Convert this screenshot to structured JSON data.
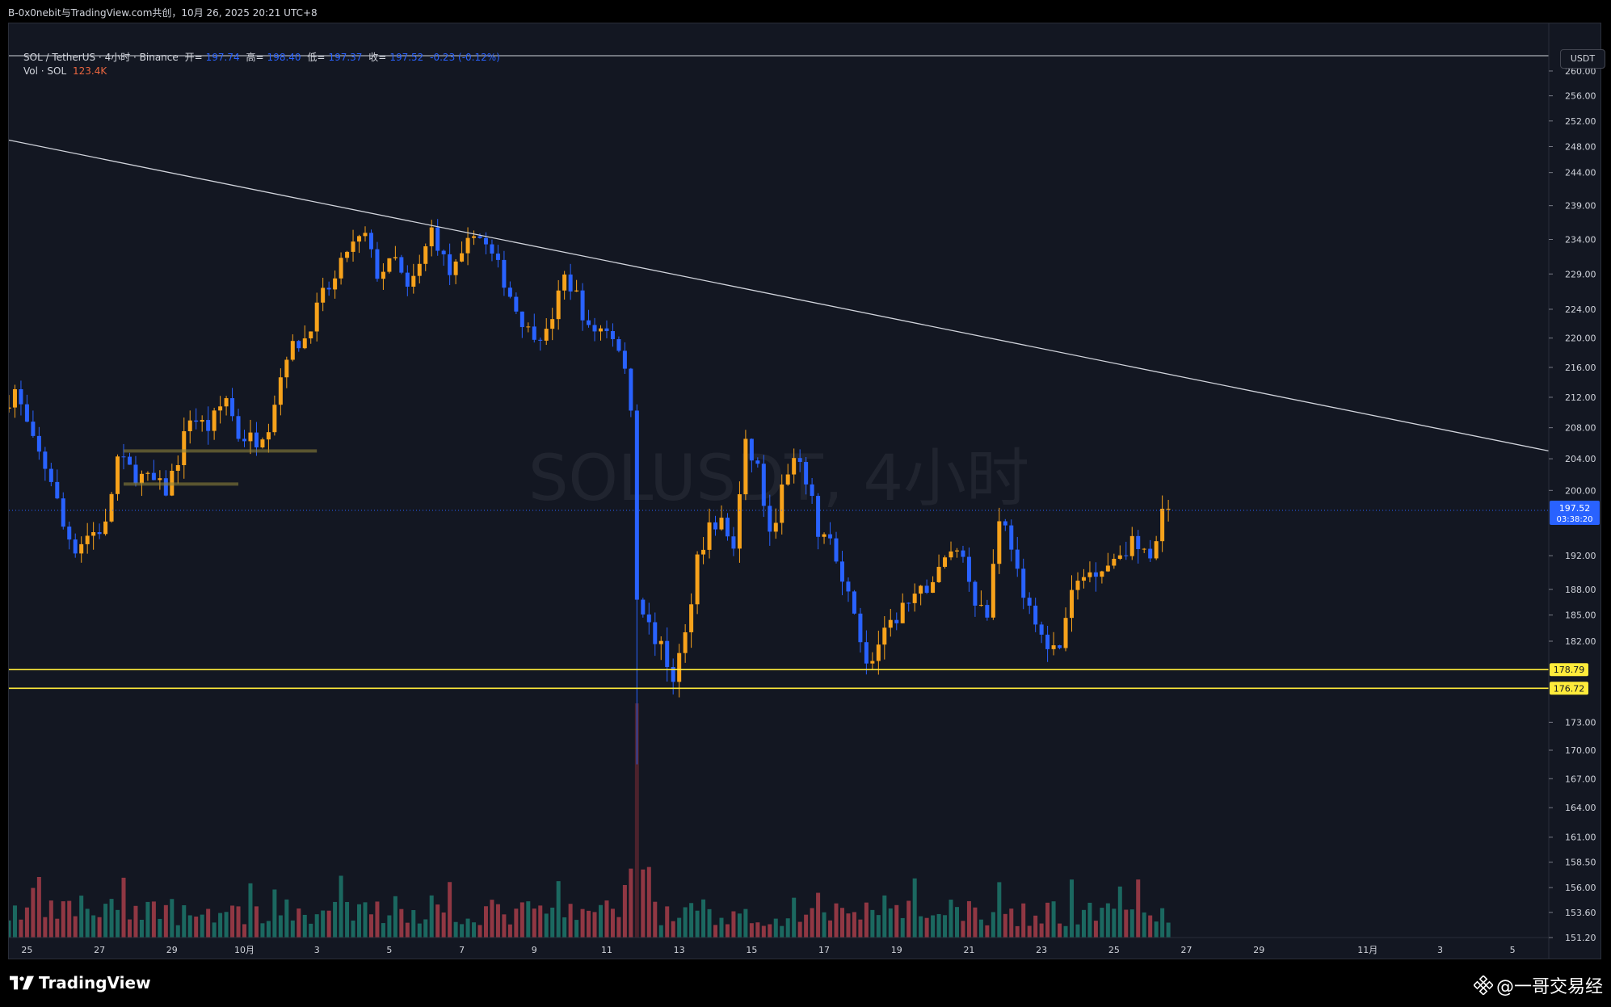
{
  "share_text": "B-0x0nebit与TradingView.com共创，10月 26, 2025 20:21 UTC+8",
  "legend": {
    "symbol": "SOL / TetherUS · 4小时 · Binance",
    "open_label": "开=",
    "open": "197.74",
    "high_label": "高=",
    "high": "198.40",
    "low_label": "低=",
    "low": "197.37",
    "close_label": "收=",
    "close": "197.52",
    "change": "-0.23 (-0.12%)",
    "vol_label": "Vol · SOL",
    "vol_value": "123.4K"
  },
  "currency_button": "USDT",
  "watermark_text": "SOLUSDT, 4小时",
  "brand": "TradingView",
  "credit": "@一哥交易经",
  "price_tag": {
    "value": "197.52",
    "countdown": "03:38:20"
  },
  "level_tags": [
    "178.79",
    "176.72"
  ],
  "colors": {
    "background": "#131722",
    "up": "#f7a21b",
    "down": "#2962ff",
    "vol_up": "#22ab94",
    "vol_down": "#f7525f",
    "level": "#ffeb3b",
    "trendline": "#d1d4dc",
    "box": "#8a7f3a",
    "last_price": "#2962ff"
  },
  "icons": [
    "tradingview-logo-icon",
    "binance-logo-icon"
  ],
  "chart_data": {
    "type": "candlestick",
    "title": "SOL / TetherUS · 4小时 · Binance",
    "y_scale": "log",
    "y_ticks": [
      "260.00",
      "256.00",
      "252.00",
      "248.00",
      "244.00",
      "239.00",
      "234.00",
      "229.00",
      "224.00",
      "220.00",
      "216.00",
      "212.00",
      "208.00",
      "204.00",
      "200.00",
      "192.00",
      "188.00",
      "185.00",
      "182.00",
      "173.00",
      "170.00",
      "167.00",
      "164.00",
      "161.00",
      "158.50",
      "156.00",
      "153.60",
      "151.20"
    ],
    "ylim": [
      151.2,
      262.5
    ],
    "x_ticks": [
      "25",
      "27",
      "29",
      "10月",
      "3",
      "5",
      "7",
      "9",
      "11",
      "13",
      "15",
      "17",
      "19",
      "21",
      "23",
      "25",
      "27",
      "29",
      "11月",
      "3",
      "5"
    ],
    "x_tick_dates": [
      "2025-09-25",
      "2025-09-27",
      "2025-09-29",
      "2025-10-01",
      "2025-10-03",
      "2025-10-05",
      "2025-10-07",
      "2025-10-09",
      "2025-10-11",
      "2025-10-13",
      "2025-10-15",
      "2025-10-17",
      "2025-10-19",
      "2025-10-21",
      "2025-10-23",
      "2025-10-25",
      "2025-10-27",
      "2025-10-29",
      "2025-11-01",
      "2025-11-03",
      "2025-11-05"
    ],
    "xlim": [
      "2025-09-24T12:00",
      "2025-11-06T00:00"
    ],
    "price_path": [
      [
        "2025-09-24T12:00",
        210.5
      ],
      [
        "2025-09-24T20:00",
        213.0
      ],
      [
        "2025-09-25T08:00",
        206.0
      ],
      [
        "2025-09-25T20:00",
        201.5
      ],
      [
        "2025-09-26T04:00",
        195.5
      ],
      [
        "2025-09-26T12:00",
        193.0
      ],
      [
        "2025-09-26T20:00",
        194.5
      ],
      [
        "2025-09-27T08:00",
        195.5
      ],
      [
        "2025-09-27T16:00",
        204.0
      ],
      [
        "2025-09-28T04:00",
        202.0
      ],
      [
        "2025-09-28T16:00",
        201.0
      ],
      [
        "2025-09-29T00:00",
        200.0
      ],
      [
        "2025-09-29T08:00",
        204.0
      ],
      [
        "2025-09-29T16:00",
        209.5
      ],
      [
        "2025-09-30T04:00",
        208.0
      ],
      [
        "2025-09-30T16:00",
        212.0
      ],
      [
        "2025-10-01T00:00",
        207.0
      ],
      [
        "2025-10-01T12:00",
        206.5
      ],
      [
        "2025-10-01T20:00",
        208.5
      ],
      [
        "2025-10-02T08:00",
        218.0
      ],
      [
        "2025-10-02T20:00",
        220.0
      ],
      [
        "2025-10-03T08:00",
        226.0
      ],
      [
        "2025-10-03T16:00",
        228.0
      ],
      [
        "2025-10-04T00:00",
        232.5
      ],
      [
        "2025-10-04T12:00",
        234.5
      ],
      [
        "2025-10-04T20:00",
        229.0
      ],
      [
        "2025-10-05T08:00",
        231.0
      ],
      [
        "2025-10-05T16:00",
        226.5
      ],
      [
        "2025-10-06T00:00",
        230.0
      ],
      [
        "2025-10-06T08:00",
        235.5
      ],
      [
        "2025-10-06T20:00",
        229.0
      ],
      [
        "2025-10-07T04:00",
        231.0
      ],
      [
        "2025-10-07T12:00",
        235.5
      ],
      [
        "2025-10-07T20:00",
        233.0
      ],
      [
        "2025-10-08T04:00",
        230.0
      ],
      [
        "2025-10-08T16:00",
        224.0
      ],
      [
        "2025-10-09T00:00",
        221.0
      ],
      [
        "2025-10-09T12:00",
        220.5
      ],
      [
        "2025-10-10T00:00",
        228.5
      ],
      [
        "2025-10-10T08:00",
        226.0
      ],
      [
        "2025-10-10T16:00",
        221.0
      ],
      [
        "2025-10-11T04:00",
        221.5
      ],
      [
        "2025-10-11T12:00",
        219.0
      ],
      [
        "2025-10-11T20:00",
        211.0
      ],
      [
        "2025-10-12T00:00",
        187.0
      ],
      [
        "2025-10-12T08:00",
        184.0
      ],
      [
        "2025-10-12T16:00",
        181.0
      ],
      [
        "2025-10-13T00:00",
        178.0
      ],
      [
        "2025-10-13T08:00",
        182.5
      ],
      [
        "2025-10-13T16:00",
        192.0
      ],
      [
        "2025-10-14T00:00",
        195.5
      ],
      [
        "2025-10-14T08:00",
        196.0
      ],
      [
        "2025-10-14T16:00",
        193.0
      ],
      [
        "2025-10-15T00:00",
        205.5
      ],
      [
        "2025-10-15T08:00",
        203.0
      ],
      [
        "2025-10-15T16:00",
        194.0
      ],
      [
        "2025-10-16T00:00",
        200.0
      ],
      [
        "2025-10-16T08:00",
        203.5
      ],
      [
        "2025-10-16T16:00",
        201.5
      ],
      [
        "2025-10-17T00:00",
        195.0
      ],
      [
        "2025-10-17T08:00",
        194.0
      ],
      [
        "2025-10-17T16:00",
        188.0
      ],
      [
        "2025-10-18T00:00",
        186.0
      ],
      [
        "2025-10-18T08:00",
        179.0
      ],
      [
        "2025-10-18T16:00",
        181.5
      ],
      [
        "2025-10-19T00:00",
        183.5
      ],
      [
        "2025-10-19T08:00",
        186.0
      ],
      [
        "2025-10-19T16:00",
        186.5
      ],
      [
        "2025-10-20T00:00",
        188.5
      ],
      [
        "2025-10-20T08:00",
        190.0
      ],
      [
        "2025-10-20T16:00",
        193.0
      ],
      [
        "2025-10-21T00:00",
        192.0
      ],
      [
        "2025-10-21T08:00",
        187.0
      ],
      [
        "2025-10-21T16:00",
        185.0
      ],
      [
        "2025-10-22T00:00",
        197.0
      ],
      [
        "2025-10-22T08:00",
        193.5
      ],
      [
        "2025-10-22T16:00",
        186.0
      ],
      [
        "2025-10-23T00:00",
        185.0
      ],
      [
        "2025-10-23T08:00",
        180.5
      ],
      [
        "2025-10-23T16:00",
        181.5
      ],
      [
        "2025-10-24T00:00",
        187.5
      ],
      [
        "2025-10-24T08:00",
        189.5
      ],
      [
        "2025-10-24T16:00",
        190.5
      ],
      [
        "2025-10-25T00:00",
        191.0
      ],
      [
        "2025-10-25T08:00",
        192.5
      ],
      [
        "2025-10-25T16:00",
        193.5
      ],
      [
        "2025-10-26T00:00",
        192.0
      ],
      [
        "2025-10-26T08:00",
        193.0
      ],
      [
        "2025-10-26T12:00",
        197.7
      ]
    ],
    "volume_spike": {
      "date": "2025-10-11T20:00",
      "value": 1
    },
    "horizontal_levels": [
      178.79,
      176.72
    ],
    "last_price": 197.52,
    "trendline": {
      "start": [
        "2025-09-24T12:00",
        249.0
      ],
      "end": [
        "2025-11-06T00:00",
        205.0
      ]
    },
    "boxes": [
      {
        "start": "2025-09-27T16:00",
        "end": "2025-10-03T00:00",
        "price": 205.0
      },
      {
        "start": "2025-09-27T16:00",
        "end": "2025-09-30T20:00",
        "price": 200.8
      }
    ],
    "grid": false,
    "legend_position": "top-left"
  }
}
